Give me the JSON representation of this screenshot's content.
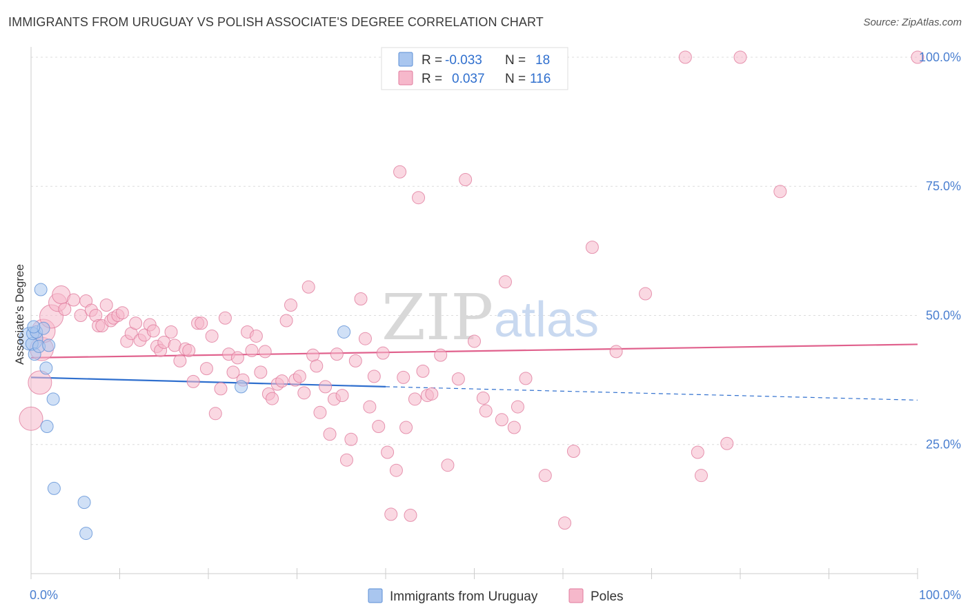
{
  "header": {
    "title": "IMMIGRANTS FROM URUGUAY VS POLISH ASSOCIATE'S DEGREE CORRELATION CHART",
    "source": "Source: ZipAtlas.com"
  },
  "watermark": {
    "part1": "ZIP",
    "part2": "atlas"
  },
  "legend_box": {
    "rows": [
      {
        "r_label": "R =",
        "r_value": "-0.033",
        "n_label": "N =",
        "n_value": "18",
        "color": "#a9c6ef",
        "stroke": "#5b8fd6"
      },
      {
        "r_label": "R =",
        "r_value": "0.037",
        "n_label": "N =",
        "n_value": "116",
        "color": "#f6b8cb",
        "stroke": "#e07a9c"
      }
    ]
  },
  "bottom_legend": [
    {
      "label": "Immigrants from Uruguay",
      "color": "#a9c6ef",
      "stroke": "#5b8fd6"
    },
    {
      "label": "Poles",
      "color": "#f6b8cb",
      "stroke": "#e07a9c"
    }
  ],
  "chart_data": {
    "type": "scatter",
    "title": "IMMIGRANTS FROM URUGUAY VS POLISH ASSOCIATE'S DEGREE CORRELATION CHART",
    "xlabel": "",
    "ylabel": "Associate's Degree",
    "xlim": [
      0,
      100
    ],
    "ylim": [
      0,
      102
    ],
    "x_tick_labels": [
      "0.0%",
      "100.0%"
    ],
    "y_ticks": [
      25,
      50,
      75,
      100
    ],
    "y_tick_labels": [
      "25.0%",
      "50.0%",
      "75.0%",
      "100.0%"
    ],
    "grid": "horizontal dashed",
    "legend_position": "top-center",
    "series": [
      {
        "name": "Immigrants from Uruguay",
        "color": "#a9c6ef",
        "stroke": "#5b8fd6",
        "trend": {
          "x": [
            0,
            40,
            100
          ],
          "y": [
            38.0,
            36.2,
            33.6
          ],
          "solid_until": 40,
          "color": "#2f6fce"
        },
        "points": [
          [
            0.0,
            45.5,
            2
          ],
          [
            0.1,
            44.5,
            1
          ],
          [
            0.2,
            46.5,
            1
          ],
          [
            0.4,
            42.5,
            1
          ],
          [
            0.6,
            46.8,
            1
          ],
          [
            0.9,
            44.0,
            1
          ],
          [
            1.1,
            55.0,
            1
          ],
          [
            1.4,
            47.5,
            1
          ],
          [
            1.7,
            39.8,
            1
          ],
          [
            1.8,
            28.5,
            1
          ],
          [
            2.0,
            44.2,
            1
          ],
          [
            2.5,
            33.8,
            1
          ],
          [
            2.6,
            16.5,
            1
          ],
          [
            6.0,
            13.8,
            1
          ],
          [
            6.2,
            7.8,
            1
          ],
          [
            23.7,
            36.2,
            1
          ],
          [
            35.3,
            46.8,
            1
          ],
          [
            0.3,
            47.8,
            1
          ]
        ]
      },
      {
        "name": "Poles",
        "color": "#f6b8cb",
        "stroke": "#e07a9c",
        "trend": {
          "x": [
            0,
            100
          ],
          "y": [
            41.8,
            44.4
          ],
          "color": "#e0608c"
        },
        "points": [
          [
            0.0,
            30.0,
            2
          ],
          [
            1.0,
            37.0,
            2
          ],
          [
            1.2,
            43.5,
            2
          ],
          [
            1.4,
            47.0,
            2
          ],
          [
            2.3,
            49.8,
            2
          ],
          [
            3.0,
            52.5,
            1.5
          ],
          [
            3.4,
            54.0,
            1.5
          ],
          [
            3.8,
            51.2,
            1
          ],
          [
            4.8,
            53.0,
            1
          ],
          [
            5.6,
            50.0,
            1
          ],
          [
            6.2,
            52.8,
            1
          ],
          [
            6.8,
            51.0,
            1
          ],
          [
            7.3,
            50.0,
            1
          ],
          [
            7.6,
            48.0,
            1
          ],
          [
            8.0,
            48.0,
            1
          ],
          [
            8.5,
            52.0,
            1
          ],
          [
            9.0,
            49.0,
            1
          ],
          [
            9.3,
            49.5,
            1
          ],
          [
            9.8,
            50.0,
            1
          ],
          [
            10.3,
            50.5,
            1
          ],
          [
            10.8,
            45.0,
            1
          ],
          [
            11.3,
            46.5,
            1
          ],
          [
            11.8,
            48.5,
            1
          ],
          [
            12.3,
            45.2,
            1
          ],
          [
            12.8,
            46.2,
            1
          ],
          [
            13.4,
            48.2,
            1
          ],
          [
            13.8,
            47.0,
            1
          ],
          [
            14.2,
            44.0,
            1
          ],
          [
            14.6,
            43.2,
            1
          ],
          [
            15.0,
            44.8,
            1
          ],
          [
            15.8,
            46.8,
            1
          ],
          [
            16.2,
            44.2,
            1
          ],
          [
            16.8,
            41.2,
            1
          ],
          [
            17.4,
            43.5,
            1
          ],
          [
            17.8,
            43.2,
            1
          ],
          [
            18.3,
            37.2,
            1
          ],
          [
            18.8,
            48.5,
            1
          ],
          [
            19.2,
            48.5,
            1
          ],
          [
            19.8,
            39.7,
            1
          ],
          [
            20.4,
            46.0,
            1
          ],
          [
            20.8,
            31.0,
            1
          ],
          [
            21.4,
            35.8,
            1
          ],
          [
            21.9,
            49.5,
            1
          ],
          [
            22.3,
            42.5,
            1
          ],
          [
            22.8,
            39.0,
            1
          ],
          [
            23.3,
            41.8,
            1
          ],
          [
            23.9,
            37.5,
            1
          ],
          [
            24.4,
            46.8,
            1
          ],
          [
            24.9,
            43.2,
            1
          ],
          [
            25.4,
            46.0,
            1
          ],
          [
            25.9,
            39.0,
            1
          ],
          [
            26.4,
            43.0,
            1
          ],
          [
            26.8,
            34.8,
            1
          ],
          [
            27.2,
            33.9,
            1
          ],
          [
            27.8,
            36.7,
            1
          ],
          [
            28.3,
            37.3,
            1
          ],
          [
            28.8,
            49.0,
            1
          ],
          [
            29.3,
            52.0,
            1
          ],
          [
            29.8,
            37.5,
            1
          ],
          [
            30.3,
            38.2,
            1
          ],
          [
            30.8,
            35.0,
            1
          ],
          [
            31.3,
            55.5,
            1
          ],
          [
            31.8,
            42.3,
            1
          ],
          [
            32.2,
            40.2,
            1
          ],
          [
            32.6,
            31.2,
            1
          ],
          [
            33.2,
            36.2,
            1
          ],
          [
            33.7,
            27.0,
            1
          ],
          [
            34.2,
            33.8,
            1
          ],
          [
            34.5,
            42.5,
            1
          ],
          [
            35.1,
            34.5,
            1
          ],
          [
            35.6,
            22.0,
            1
          ],
          [
            36.1,
            26.0,
            1
          ],
          [
            36.6,
            41.2,
            1
          ],
          [
            37.2,
            53.2,
            1
          ],
          [
            37.7,
            45.5,
            1
          ],
          [
            38.2,
            32.3,
            1
          ],
          [
            38.7,
            38.2,
            1
          ],
          [
            39.2,
            28.5,
            1
          ],
          [
            39.7,
            42.7,
            1
          ],
          [
            40.2,
            23.5,
            1
          ],
          [
            40.6,
            11.5,
            1
          ],
          [
            41.2,
            20.0,
            1
          ],
          [
            41.6,
            77.8,
            1
          ],
          [
            42.0,
            38.0,
            1
          ],
          [
            42.3,
            28.3,
            1
          ],
          [
            42.8,
            11.3,
            1
          ],
          [
            43.3,
            33.8,
            1
          ],
          [
            43.7,
            72.8,
            1
          ],
          [
            44.2,
            39.2,
            1
          ],
          [
            44.7,
            34.5,
            1
          ],
          [
            45.2,
            34.8,
            1
          ],
          [
            46.2,
            42.3,
            1
          ],
          [
            47.0,
            21.0,
            1
          ],
          [
            48.2,
            37.7,
            1
          ],
          [
            49.0,
            76.3,
            1
          ],
          [
            50.0,
            45.0,
            1
          ],
          [
            51.0,
            34.0,
            1
          ],
          [
            51.3,
            31.5,
            1
          ],
          [
            53.1,
            29.8,
            1
          ],
          [
            53.5,
            56.5,
            1
          ],
          [
            54.5,
            28.3,
            1
          ],
          [
            54.9,
            32.3,
            1
          ],
          [
            55.8,
            37.8,
            1
          ],
          [
            58.0,
            19.0,
            1
          ],
          [
            60.2,
            9.8,
            1
          ],
          [
            61.2,
            23.7,
            1
          ],
          [
            63.3,
            63.2,
            1
          ],
          [
            66.0,
            43.0,
            1
          ],
          [
            69.3,
            54.2,
            1
          ],
          [
            73.8,
            100.0,
            1
          ],
          [
            75.2,
            23.5,
            1
          ],
          [
            75.6,
            19.0,
            1
          ],
          [
            78.5,
            25.2,
            1
          ],
          [
            80.0,
            100.0,
            1
          ],
          [
            84.5,
            74.0,
            1
          ],
          [
            100.0,
            100.0,
            1
          ]
        ]
      }
    ]
  }
}
